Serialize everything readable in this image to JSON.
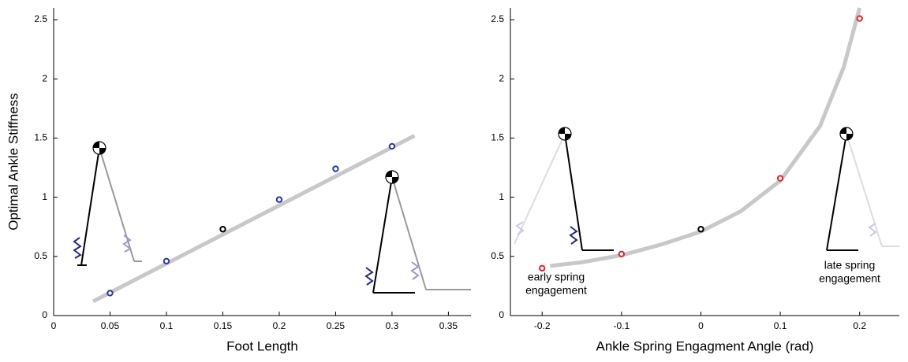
{
  "chart_data": [
    {
      "type": "scatter",
      "y_label": "Optimal Ankle Stiffness",
      "x_label": "Foot Length",
      "x": [
        0.05,
        0.1,
        0.15,
        0.2,
        0.25,
        0.3
      ],
      "values": [
        0.19,
        0.46,
        0.73,
        0.98,
        1.24,
        1.43
      ],
      "colors": [
        "#2b3a9c",
        "#2b3a9c",
        "#000000",
        "#2b3a9c",
        "#2b3a9c",
        "#2b3a9c"
      ],
      "fit": {
        "x": [
          0.035,
          0.32
        ],
        "values": [
          0.12,
          1.52
        ],
        "color": "#c8c8c8"
      },
      "xlim": [
        0,
        0.37
      ],
      "ylim": [
        0,
        2.6
      ],
      "xticks": [
        0,
        0.05,
        0.1,
        0.15,
        0.2,
        0.25,
        0.3,
        0.35
      ],
      "yticks": [
        0,
        0.5,
        1,
        1.5,
        2,
        2.5
      ]
    },
    {
      "type": "scatter",
      "x_label": "Ankle Spring Engagment Angle (rad)",
      "x": [
        -0.2,
        -0.1,
        0,
        0.1,
        0.2
      ],
      "values": [
        0.4,
        0.52,
        0.73,
        1.16,
        2.51
      ],
      "colors": [
        "#e0202a",
        "#e0202a",
        "#000000",
        "#e0202a",
        "#e0202a"
      ],
      "fit": {
        "x": [
          -0.19,
          -0.15,
          -0.1,
          -0.05,
          0,
          0.05,
          0.1,
          0.15,
          0.18,
          0.2
        ],
        "values": [
          0.42,
          0.45,
          0.51,
          0.6,
          0.71,
          0.88,
          1.14,
          1.6,
          2.1,
          2.6
        ],
        "color": "#c8c8c8"
      },
      "annotations": [
        [
          "early spring",
          "engagement"
        ],
        [
          "late spring",
          "engagement"
        ]
      ],
      "xlim": [
        -0.24,
        0.25
      ],
      "ylim": [
        0,
        2.6
      ],
      "xticks": [
        -0.2,
        -0.1,
        0,
        0.1,
        0.2
      ],
      "yticks": [
        0,
        0.5,
        1,
        1.5,
        2,
        2.5
      ]
    }
  ]
}
